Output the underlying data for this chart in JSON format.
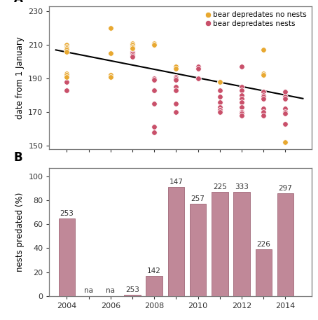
{
  "scatter_no_nests": {
    "color": "#E8A830",
    "label": "bear depredates no nests",
    "points": [
      [
        2004,
        210
      ],
      [
        2004,
        209
      ],
      [
        2004,
        208
      ],
      [
        2004,
        207
      ],
      [
        2004,
        206
      ],
      [
        2004,
        193
      ],
      [
        2004,
        192
      ],
      [
        2004,
        191
      ],
      [
        2006,
        220
      ],
      [
        2006,
        205
      ],
      [
        2006,
        192
      ],
      [
        2006,
        191
      ],
      [
        2007,
        211
      ],
      [
        2007,
        210
      ],
      [
        2007,
        209
      ],
      [
        2007,
        208
      ],
      [
        2008,
        211
      ],
      [
        2008,
        210
      ],
      [
        2009,
        197
      ],
      [
        2009,
        196
      ],
      [
        2011,
        188
      ],
      [
        2013,
        207
      ],
      [
        2013,
        193
      ],
      [
        2013,
        192
      ],
      [
        2014,
        152
      ]
    ]
  },
  "scatter_nests": {
    "color": "#C9506A",
    "label": "bear depredates nests",
    "points": [
      [
        2004,
        188
      ],
      [
        2004,
        183
      ],
      [
        2007,
        206
      ],
      [
        2007,
        205
      ],
      [
        2007,
        204
      ],
      [
        2007,
        203
      ],
      [
        2008,
        190
      ],
      [
        2008,
        189
      ],
      [
        2008,
        183
      ],
      [
        2008,
        175
      ],
      [
        2008,
        161
      ],
      [
        2008,
        158
      ],
      [
        2009,
        197
      ],
      [
        2009,
        191
      ],
      [
        2009,
        190
      ],
      [
        2009,
        189
      ],
      [
        2009,
        185
      ],
      [
        2009,
        183
      ],
      [
        2009,
        175
      ],
      [
        2009,
        170
      ],
      [
        2010,
        197
      ],
      [
        2010,
        196
      ],
      [
        2010,
        190
      ],
      [
        2011,
        188
      ],
      [
        2011,
        183
      ],
      [
        2011,
        179
      ],
      [
        2011,
        176
      ],
      [
        2011,
        173
      ],
      [
        2011,
        171
      ],
      [
        2011,
        170
      ],
      [
        2012,
        197
      ],
      [
        2012,
        185
      ],
      [
        2012,
        183
      ],
      [
        2012,
        180
      ],
      [
        2012,
        178
      ],
      [
        2012,
        176
      ],
      [
        2012,
        173
      ],
      [
        2012,
        170
      ],
      [
        2012,
        169
      ],
      [
        2012,
        168
      ],
      [
        2013,
        182
      ],
      [
        2013,
        180
      ],
      [
        2013,
        179
      ],
      [
        2013,
        178
      ],
      [
        2013,
        172
      ],
      [
        2013,
        170
      ],
      [
        2013,
        168
      ],
      [
        2014,
        182
      ],
      [
        2014,
        179
      ],
      [
        2014,
        178
      ],
      [
        2014,
        172
      ],
      [
        2014,
        170
      ],
      [
        2014,
        169
      ],
      [
        2014,
        163
      ]
    ]
  },
  "trendline": {
    "x": [
      2003.5,
      2014.8
    ],
    "y": [
      207,
      178
    ]
  },
  "scatter_ylim": [
    148,
    233
  ],
  "scatter_yticks": [
    150,
    170,
    190,
    210,
    230
  ],
  "scatter_xticks_all": [
    2004,
    2005,
    2006,
    2007,
    2008,
    2009,
    2010,
    2011,
    2012,
    2013,
    2014
  ],
  "scatter_xlabel_years": [
    2004,
    2006,
    2008,
    2010,
    2012,
    2014
  ],
  "bar_years": [
    2004,
    2005,
    2006,
    2007,
    2008,
    2009,
    2010,
    2011,
    2012,
    2013,
    2014
  ],
  "bar_heights": [
    65,
    0,
    0,
    1,
    17,
    91,
    77,
    87,
    87,
    39,
    86
  ],
  "bar_labels": [
    "253",
    "na",
    "na",
    "253",
    "142",
    "147",
    "257",
    "225",
    "333",
    "226",
    "297"
  ],
  "bar_na_indices": [
    1,
    2
  ],
  "bar_color": "#C08898",
  "bar_ylim": [
    0,
    107
  ],
  "bar_yticks": [
    0,
    20,
    40,
    60,
    80,
    100
  ],
  "ylabel_top": "date from 1 January",
  "ylabel_bot": "nests predated (%)",
  "label_A": "A",
  "label_B": "B",
  "spine_color": "#7a7a7a",
  "tick_color": "#333333",
  "background": "#ffffff",
  "marker_size": 5.5
}
